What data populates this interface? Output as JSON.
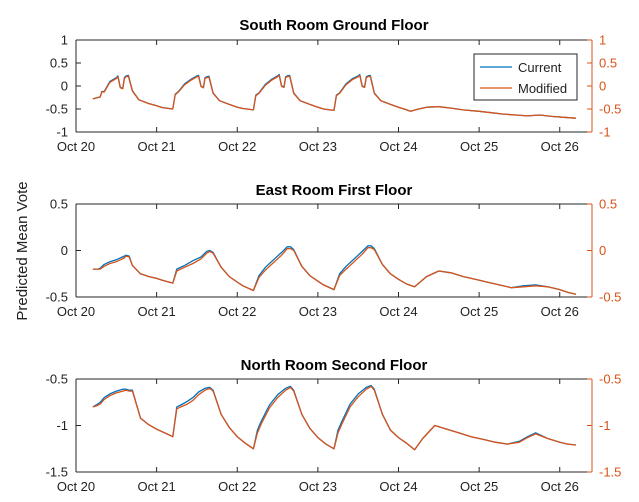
{
  "figure": {
    "ylabel": "Predicted Mean Vote",
    "legend": {
      "placement": "top-right of first panel",
      "entries": [
        "Current",
        "Modified"
      ]
    },
    "colors": {
      "current": "#0072BD",
      "modified": "#D95319",
      "right_axis": "#D95319",
      "axis": "#262626"
    }
  },
  "chart_data": [
    {
      "type": "line",
      "title": "South Room Ground Floor",
      "xlabel": "",
      "ylabel": "Predicted Mean Vote",
      "xlim": [
        0,
        6.4
      ],
      "ylim": [
        -1,
        1
      ],
      "yticks": [
        -1,
        -0.5,
        0,
        0.5,
        1
      ],
      "ytick_labels": [
        "-1",
        "-0.5",
        "0",
        "0.5",
        "1"
      ],
      "right_ytick_labels": [
        "-1",
        "-0.5",
        "0",
        "0.5",
        "1"
      ],
      "xticks": [
        0,
        1,
        2,
        3,
        4,
        5,
        6
      ],
      "xtick_labels": [
        "Oct 20",
        "Oct 21",
        "Oct 22",
        "Oct 23",
        "Oct 24",
        "Oct 25",
        "Oct 26"
      ],
      "legend": true,
      "series": [
        {
          "name": "Current",
          "x": [
            0.21,
            0.27,
            0.3,
            0.32,
            0.35,
            0.42,
            0.5,
            0.52,
            0.55,
            0.58,
            0.6,
            0.62,
            0.65,
            0.7,
            0.78,
            0.9,
            1.0,
            1.07,
            1.2,
            1.23,
            1.27,
            1.35,
            1.43,
            1.5,
            1.52,
            1.55,
            1.58,
            1.6,
            1.62,
            1.65,
            1.7,
            1.78,
            1.9,
            2.0,
            2.07,
            2.2,
            2.23,
            2.27,
            2.35,
            2.43,
            2.5,
            2.52,
            2.55,
            2.58,
            2.6,
            2.62,
            2.65,
            2.7,
            2.78,
            2.9,
            3.0,
            3.07,
            3.2,
            3.23,
            3.27,
            3.35,
            3.43,
            3.5,
            3.52,
            3.55,
            3.58,
            3.6,
            3.62,
            3.65,
            3.7,
            3.78,
            3.9,
            4.0,
            4.07,
            4.15,
            4.25,
            4.35,
            4.5,
            4.65,
            4.8,
            5.0,
            5.15,
            5.3,
            5.45,
            5.6,
            5.75,
            5.9,
            6.05,
            6.2
          ],
          "y": [
            -0.28,
            -0.25,
            -0.24,
            -0.12,
            -0.12,
            0.1,
            0.18,
            0.22,
            -0.03,
            -0.05,
            0.18,
            0.22,
            0.23,
            -0.1,
            -0.3,
            -0.38,
            -0.43,
            -0.47,
            -0.5,
            -0.18,
            -0.12,
            0.05,
            0.15,
            0.22,
            0.23,
            0,
            -0.03,
            0.18,
            0.2,
            0.21,
            -0.15,
            -0.32,
            -0.4,
            -0.46,
            -0.49,
            -0.52,
            -0.2,
            -0.15,
            0.04,
            0.15,
            0.22,
            0.25,
            0,
            -0.02,
            0.2,
            0.22,
            0.23,
            -0.15,
            -0.32,
            -0.4,
            -0.46,
            -0.5,
            -0.53,
            -0.2,
            -0.15,
            0.05,
            0.16,
            0.22,
            0.25,
            0,
            -0.02,
            0.2,
            0.22,
            0.23,
            -0.15,
            -0.32,
            -0.4,
            -0.46,
            -0.5,
            -0.55,
            -0.5,
            -0.46,
            -0.45,
            -0.48,
            -0.52,
            -0.55,
            -0.58,
            -0.61,
            -0.63,
            -0.65,
            -0.63,
            -0.66,
            -0.68,
            -0.7
          ]
        },
        {
          "name": "Modified",
          "x": [
            0.21,
            0.27,
            0.3,
            0.32,
            0.35,
            0.42,
            0.5,
            0.52,
            0.55,
            0.58,
            0.6,
            0.62,
            0.65,
            0.7,
            0.78,
            0.9,
            1.0,
            1.07,
            1.2,
            1.23,
            1.27,
            1.35,
            1.43,
            1.5,
            1.52,
            1.55,
            1.58,
            1.6,
            1.62,
            1.65,
            1.7,
            1.78,
            1.9,
            2.0,
            2.07,
            2.2,
            2.23,
            2.27,
            2.35,
            2.43,
            2.5,
            2.52,
            2.55,
            2.58,
            2.6,
            2.62,
            2.65,
            2.7,
            2.78,
            2.9,
            3.0,
            3.07,
            3.2,
            3.23,
            3.27,
            3.35,
            3.43,
            3.5,
            3.52,
            3.55,
            3.58,
            3.6,
            3.62,
            3.65,
            3.7,
            3.78,
            3.9,
            4.0,
            4.07,
            4.15,
            4.25,
            4.35,
            4.5,
            4.65,
            4.8,
            5.0,
            5.15,
            5.3,
            5.45,
            5.6,
            5.75,
            5.9,
            6.05,
            6.2
          ],
          "y": [
            -0.28,
            -0.25,
            -0.24,
            -0.13,
            -0.13,
            0.08,
            0.16,
            0.2,
            -0.04,
            -0.06,
            0.16,
            0.2,
            0.21,
            -0.11,
            -0.3,
            -0.38,
            -0.43,
            -0.47,
            -0.5,
            -0.19,
            -0.13,
            0.03,
            0.13,
            0.2,
            0.21,
            -0.01,
            -0.04,
            0.16,
            0.18,
            0.19,
            -0.16,
            -0.32,
            -0.4,
            -0.46,
            -0.49,
            -0.52,
            -0.21,
            -0.16,
            0.02,
            0.13,
            0.2,
            0.23,
            -0.01,
            -0.03,
            0.18,
            0.2,
            0.21,
            -0.16,
            -0.32,
            -0.4,
            -0.46,
            -0.5,
            -0.53,
            -0.21,
            -0.16,
            0.03,
            0.14,
            0.2,
            0.23,
            -0.01,
            -0.03,
            0.18,
            0.2,
            0.21,
            -0.16,
            -0.32,
            -0.4,
            -0.46,
            -0.5,
            -0.55,
            -0.5,
            -0.46,
            -0.45,
            -0.48,
            -0.52,
            -0.55,
            -0.58,
            -0.61,
            -0.63,
            -0.65,
            -0.63,
            -0.66,
            -0.68,
            -0.7
          ]
        }
      ]
    },
    {
      "type": "line",
      "title": "East Room First Floor",
      "xlabel": "",
      "ylabel": "Predicted Mean Vote",
      "xlim": [
        0,
        6.4
      ],
      "ylim": [
        -0.5,
        0.5
      ],
      "yticks": [
        -0.5,
        0,
        0.5
      ],
      "ytick_labels": [
        "-0.5",
        "0",
        "0.5"
      ],
      "right_ytick_labels": [
        "-0.5",
        "0",
        "0.5"
      ],
      "xticks": [
        0,
        1,
        2,
        3,
        4,
        5,
        6
      ],
      "xtick_labels": [
        "Oct 20",
        "Oct 21",
        "Oct 22",
        "Oct 23",
        "Oct 24",
        "Oct 25",
        "Oct 26"
      ],
      "legend": false,
      "series": [
        {
          "name": "Current",
          "x": [
            0.21,
            0.27,
            0.3,
            0.35,
            0.42,
            0.5,
            0.55,
            0.6,
            0.62,
            0.66,
            0.7,
            0.8,
            0.9,
            1.0,
            1.07,
            1.2,
            1.25,
            1.35,
            1.45,
            1.55,
            1.62,
            1.66,
            1.7,
            1.8,
            1.9,
            2.0,
            2.07,
            2.2,
            2.27,
            2.35,
            2.45,
            2.55,
            2.62,
            2.66,
            2.7,
            2.8,
            2.9,
            3.0,
            3.07,
            3.2,
            3.27,
            3.35,
            3.45,
            3.55,
            3.62,
            3.66,
            3.7,
            3.8,
            3.9,
            4.0,
            4.1,
            4.2,
            4.35,
            4.5,
            4.65,
            4.8,
            4.95,
            5.1,
            5.25,
            5.4,
            5.55,
            5.7,
            5.85,
            6.0,
            6.1,
            6.2
          ],
          "y": [
            -0.2,
            -0.2,
            -0.19,
            -0.15,
            -0.12,
            -0.1,
            -0.08,
            -0.06,
            -0.05,
            -0.06,
            -0.16,
            -0.25,
            -0.28,
            -0.3,
            -0.32,
            -0.35,
            -0.2,
            -0.16,
            -0.11,
            -0.07,
            -0.01,
            0,
            -0.02,
            -0.18,
            -0.28,
            -0.34,
            -0.38,
            -0.43,
            -0.27,
            -0.18,
            -0.1,
            -0.02,
            0.04,
            0.04,
            0.01,
            -0.17,
            -0.27,
            -0.33,
            -0.37,
            -0.42,
            -0.25,
            -0.17,
            -0.09,
            -0.01,
            0.05,
            0.05,
            0.02,
            -0.15,
            -0.25,
            -0.31,
            -0.36,
            -0.39,
            -0.28,
            -0.22,
            -0.24,
            -0.28,
            -0.31,
            -0.34,
            -0.37,
            -0.4,
            -0.38,
            -0.37,
            -0.39,
            -0.42,
            -0.45,
            -0.47
          ]
        },
        {
          "name": "Modified",
          "x": [
            0.21,
            0.27,
            0.3,
            0.35,
            0.42,
            0.5,
            0.55,
            0.6,
            0.62,
            0.66,
            0.7,
            0.8,
            0.9,
            1.0,
            1.07,
            1.2,
            1.25,
            1.35,
            1.45,
            1.55,
            1.62,
            1.66,
            1.7,
            1.8,
            1.9,
            2.0,
            2.07,
            2.2,
            2.27,
            2.35,
            2.45,
            2.55,
            2.62,
            2.66,
            2.7,
            2.8,
            2.9,
            3.0,
            3.07,
            3.2,
            3.27,
            3.35,
            3.45,
            3.55,
            3.62,
            3.66,
            3.7,
            3.8,
            3.9,
            4.0,
            4.1,
            4.2,
            4.35,
            4.5,
            4.65,
            4.8,
            4.95,
            5.1,
            5.25,
            5.4,
            5.55,
            5.7,
            5.85,
            6.0,
            6.1,
            6.2
          ],
          "y": [
            -0.2,
            -0.2,
            -0.2,
            -0.17,
            -0.14,
            -0.12,
            -0.1,
            -0.08,
            -0.06,
            -0.07,
            -0.16,
            -0.25,
            -0.28,
            -0.3,
            -0.32,
            -0.35,
            -0.22,
            -0.18,
            -0.14,
            -0.09,
            -0.03,
            -0.01,
            -0.03,
            -0.18,
            -0.28,
            -0.34,
            -0.38,
            -0.43,
            -0.29,
            -0.21,
            -0.13,
            -0.05,
            0.02,
            0.02,
            0,
            -0.17,
            -0.27,
            -0.33,
            -0.37,
            -0.42,
            -0.27,
            -0.2,
            -0.12,
            -0.04,
            0.03,
            0.03,
            0.01,
            -0.15,
            -0.25,
            -0.31,
            -0.36,
            -0.39,
            -0.28,
            -0.22,
            -0.24,
            -0.28,
            -0.31,
            -0.34,
            -0.37,
            -0.4,
            -0.39,
            -0.38,
            -0.39,
            -0.42,
            -0.45,
            -0.47
          ]
        }
      ]
    },
    {
      "type": "line",
      "title": "North Room Second Floor",
      "xlabel": "",
      "ylabel": "Predicted Mean Vote",
      "xlim": [
        0,
        6.4
      ],
      "ylim": [
        -1.5,
        -0.5
      ],
      "yticks": [
        -1.5,
        -1,
        -0.5
      ],
      "ytick_labels": [
        "-1.5",
        "-1",
        "-0.5"
      ],
      "right_ytick_labels": [
        "-1.5",
        "-1",
        "-0.5"
      ],
      "xticks": [
        0,
        1,
        2,
        3,
        4,
        5,
        6
      ],
      "xtick_labels": [
        "Oct 20",
        "Oct 21",
        "Oct 22",
        "Oct 23",
        "Oct 24",
        "Oct 25",
        "Oct 26"
      ],
      "legend": false,
      "series": [
        {
          "name": "Current",
          "x": [
            0.21,
            0.25,
            0.3,
            0.35,
            0.42,
            0.5,
            0.58,
            0.62,
            0.66,
            0.7,
            0.8,
            0.9,
            1.0,
            1.1,
            1.2,
            1.25,
            1.3,
            1.38,
            1.45,
            1.52,
            1.6,
            1.66,
            1.7,
            1.8,
            1.9,
            2.0,
            2.1,
            2.2,
            2.25,
            2.3,
            2.4,
            2.5,
            2.6,
            2.66,
            2.7,
            2.8,
            2.9,
            3.0,
            3.1,
            3.2,
            3.25,
            3.3,
            3.4,
            3.5,
            3.6,
            3.66,
            3.7,
            3.8,
            3.9,
            4.0,
            4.1,
            4.2,
            4.3,
            4.45,
            4.6,
            4.75,
            4.9,
            5.05,
            5.2,
            5.35,
            5.5,
            5.6,
            5.7,
            5.85,
            6.0,
            6.1,
            6.2
          ],
          "y": [
            -0.8,
            -0.78,
            -0.75,
            -0.7,
            -0.66,
            -0.63,
            -0.61,
            -0.61,
            -0.62,
            -0.62,
            -0.92,
            -0.99,
            -1.04,
            -1.08,
            -1.12,
            -0.8,
            -0.78,
            -0.74,
            -0.7,
            -0.64,
            -0.6,
            -0.59,
            -0.62,
            -0.88,
            -1.02,
            -1.12,
            -1.19,
            -1.25,
            -1.05,
            -0.95,
            -0.78,
            -0.67,
            -0.6,
            -0.58,
            -0.62,
            -0.88,
            -1.03,
            -1.13,
            -1.2,
            -1.25,
            -1.05,
            -0.95,
            -0.77,
            -0.66,
            -0.59,
            -0.57,
            -0.61,
            -0.88,
            -1.05,
            -1.13,
            -1.19,
            -1.26,
            -1.14,
            -1.0,
            -1.04,
            -1.08,
            -1.12,
            -1.15,
            -1.18,
            -1.2,
            -1.17,
            -1.12,
            -1.08,
            -1.14,
            -1.18,
            -1.2,
            -1.21
          ]
        },
        {
          "name": "Modified",
          "x": [
            0.21,
            0.25,
            0.3,
            0.35,
            0.42,
            0.5,
            0.58,
            0.62,
            0.66,
            0.7,
            0.8,
            0.9,
            1.0,
            1.1,
            1.2,
            1.25,
            1.3,
            1.38,
            1.45,
            1.52,
            1.6,
            1.66,
            1.7,
            1.8,
            1.9,
            2.0,
            2.1,
            2.2,
            2.25,
            2.3,
            2.4,
            2.5,
            2.6,
            2.66,
            2.7,
            2.8,
            2.9,
            3.0,
            3.1,
            3.2,
            3.25,
            3.3,
            3.4,
            3.5,
            3.6,
            3.66,
            3.7,
            3.8,
            3.9,
            4.0,
            4.1,
            4.2,
            4.3,
            4.45,
            4.6,
            4.75,
            4.9,
            5.05,
            5.2,
            5.35,
            5.5,
            5.6,
            5.7,
            5.85,
            6.0,
            6.1,
            6.2
          ],
          "y": [
            -0.8,
            -0.79,
            -0.77,
            -0.72,
            -0.68,
            -0.65,
            -0.63,
            -0.62,
            -0.63,
            -0.63,
            -0.92,
            -0.99,
            -1.04,
            -1.08,
            -1.12,
            -0.82,
            -0.8,
            -0.77,
            -0.73,
            -0.67,
            -0.62,
            -0.6,
            -0.63,
            -0.88,
            -1.02,
            -1.12,
            -1.19,
            -1.25,
            -1.08,
            -0.98,
            -0.81,
            -0.7,
            -0.62,
            -0.59,
            -0.63,
            -0.88,
            -1.03,
            -1.13,
            -1.2,
            -1.25,
            -1.08,
            -0.98,
            -0.8,
            -0.69,
            -0.61,
            -0.58,
            -0.62,
            -0.88,
            -1.05,
            -1.13,
            -1.19,
            -1.26,
            -1.14,
            -1.0,
            -1.04,
            -1.08,
            -1.12,
            -1.15,
            -1.18,
            -1.2,
            -1.18,
            -1.13,
            -1.09,
            -1.14,
            -1.18,
            -1.2,
            -1.21
          ]
        }
      ]
    }
  ]
}
